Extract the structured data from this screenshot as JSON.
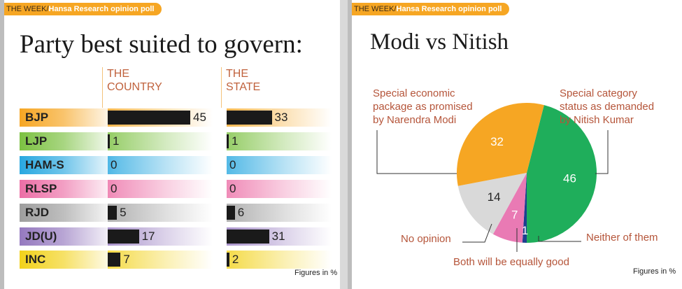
{
  "left": {
    "banner_prefix": "THE WEEK/",
    "banner_source": "Hansa Research opinion poll",
    "figures_note": "Figures in %"
  },
  "right": {
    "banner_prefix": "THE WEEK/",
    "banner_source": "Hansa Research opinion poll",
    "figures_note": "Figures in %"
  },
  "chart_data": [
    {
      "type": "bar",
      "title": "Party best suited to govern:",
      "categories": [
        "BJP",
        "LJP",
        "HAM-S",
        "RLSP",
        "RJD",
        "JD(U)",
        "INC"
      ],
      "category_colors": [
        "#f6a623",
        "#7cc142",
        "#29a8e0",
        "#ec6fa6",
        "#9e9e9e",
        "#9579bf",
        "#f2d21b"
      ],
      "series": [
        {
          "name": "THE COUNTRY",
          "values": [
            45,
            1,
            0,
            0,
            5,
            17,
            7
          ]
        },
        {
          "name": "THE STATE",
          "values": [
            33,
            1,
            0,
            0,
            6,
            31,
            2
          ]
        }
      ],
      "xlim": [
        0,
        45
      ]
    },
    {
      "type": "pie",
      "title": "Modi vs Nitish",
      "slices": [
        {
          "label": "Special category status as demanded by Nitish Kumar",
          "value": 46,
          "color": "#1fae5b"
        },
        {
          "label": "Neither of them",
          "value": 1,
          "color": "#1d3f8f"
        },
        {
          "label": "Both will be equally good",
          "value": 7,
          "color": "#e97ab4"
        },
        {
          "label": "No opinion",
          "value": 14,
          "color": "#d9d9d9"
        },
        {
          "label": "Special economic package as promised by Narendra Modi",
          "value": 32,
          "color": "#f6a623"
        }
      ],
      "label_lines": {
        "nitish": [
          "Special category",
          "status as demanded",
          "by Nitish Kumar"
        ],
        "modi": [
          "Special economic",
          "package as promised",
          "by Narendra Modi"
        ],
        "none": [
          "No opinion"
        ],
        "neither": [
          "Neither of them"
        ],
        "both": [
          "Both will be equally good"
        ]
      }
    }
  ]
}
